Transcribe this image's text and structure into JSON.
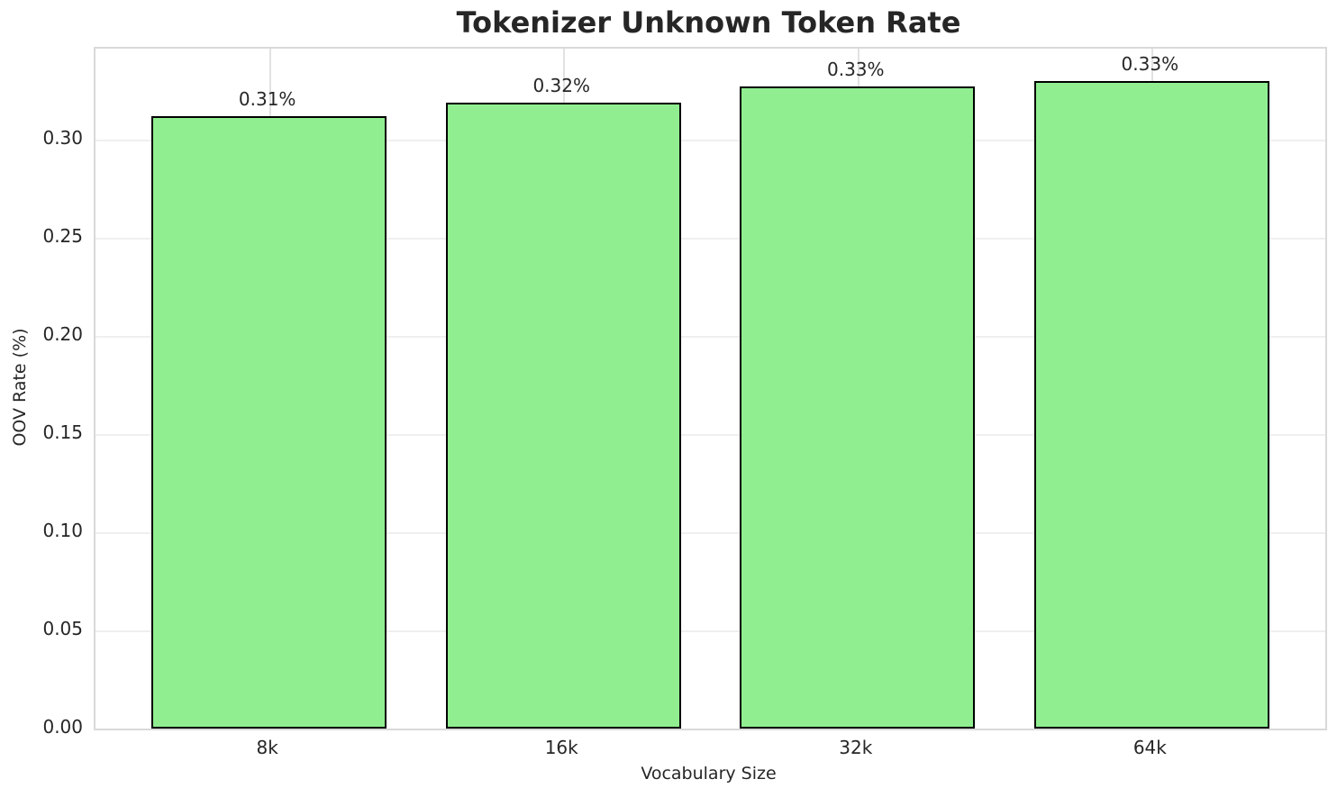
{
  "chart_data": {
    "type": "bar",
    "title": "Tokenizer Unknown Token Rate",
    "xlabel": "Vocabulary Size",
    "ylabel": "OOV Rate (%)",
    "categories": [
      "8k",
      "16k",
      "32k",
      "64k"
    ],
    "values": [
      0.312,
      0.319,
      0.327,
      0.33
    ],
    "bar_labels": [
      "0.31%",
      "0.32%",
      "0.33%",
      "0.33%"
    ],
    "ylim": [
      0,
      0.3465
    ],
    "yticks": [
      0,
      0.05,
      0.1,
      0.15,
      0.2,
      0.25,
      0.3
    ],
    "ytick_labels": [
      "0.00",
      "0.05",
      "0.10",
      "0.15",
      "0.20",
      "0.25",
      "0.30"
    ],
    "grid": true,
    "legend_position": "none",
    "bar_width_fraction": 0.8,
    "colors": {
      "bar_fill": "#90EE90",
      "bar_edge": "#000000",
      "grid_h": "#efefef",
      "grid_v": "#e2e2e2",
      "spine": "#d9d9d9",
      "text": "#262626"
    }
  }
}
